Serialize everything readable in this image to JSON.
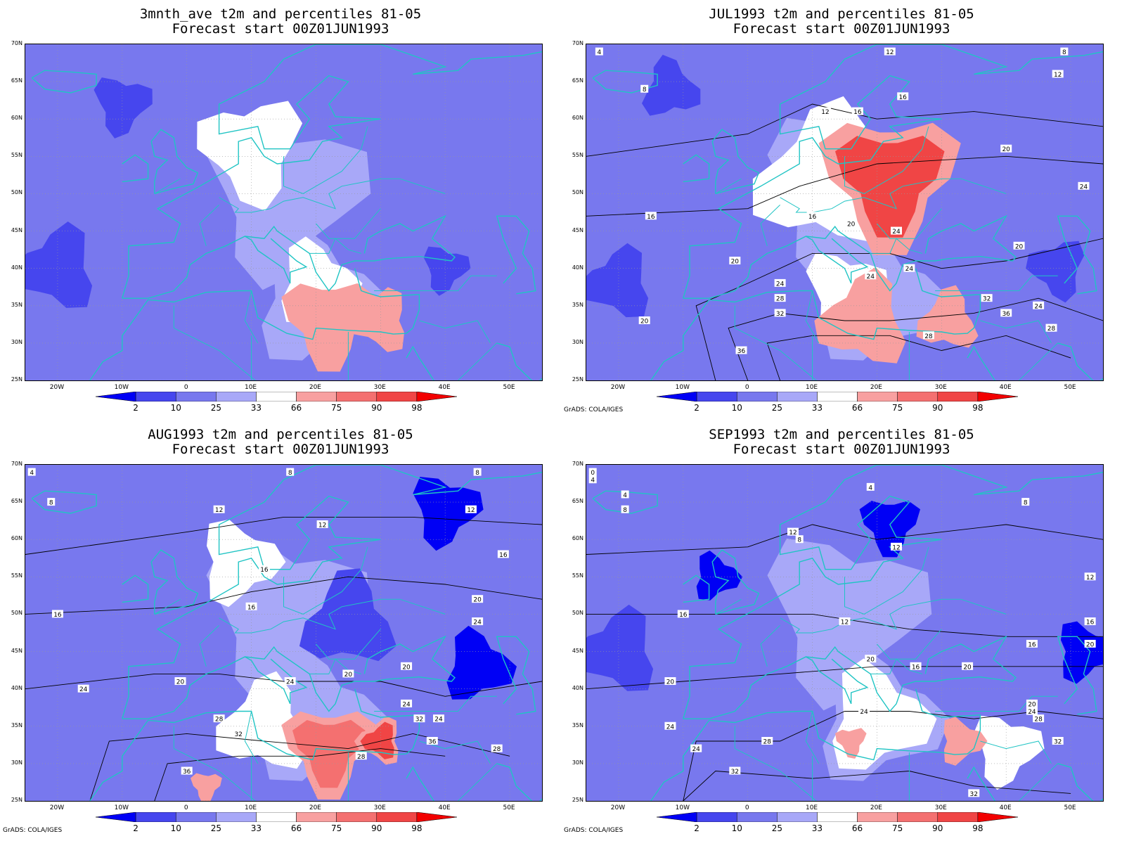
{
  "colors": {
    "c2": "#0000f5",
    "c10": "#4646ee",
    "c25": "#7878ee",
    "c33": "#a8a8f8",
    "mid": "#ffffff",
    "c66": "#f8a0a0",
    "c75": "#f47070",
    "c90": "#f04545",
    "c98": "#f20000",
    "coast": "#20c4c4",
    "contour": "#000000",
    "grid": "#999999"
  },
  "credit": "GrADS: COLA/IGES",
  "lat_labels": [
    "70N",
    "65N",
    "60N",
    "55N",
    "50N",
    "45N",
    "40N",
    "35N",
    "30N",
    "25N"
  ],
  "lon_labels": [
    "20W",
    "10W",
    "0",
    "10E",
    "20E",
    "30E",
    "40E",
    "50E"
  ],
  "colorbar_labels": [
    "2",
    "10",
    "25",
    "33",
    "66",
    "75",
    "90",
    "98"
  ],
  "panels": [
    {
      "title1": "3mnth_ave t2m and percentiles 81-05",
      "title2": "Forecast start 00Z01JUN1993",
      "show_credit": false,
      "contour_labels": [],
      "warm": [
        {
          "lon": 22,
          "lat": 33,
          "c": "c66",
          "r": 6
        },
        {
          "lon": 30,
          "lat": 33,
          "c": "c66",
          "r": 4
        }
      ],
      "cold": [
        {
          "lon": -20,
          "lat": 40,
          "c": "c10",
          "r": 7
        },
        {
          "lon": -10,
          "lat": 62,
          "c": "c10",
          "r": 5
        },
        {
          "lon": 40,
          "lat": 40,
          "c": "c10",
          "r": 4
        }
      ],
      "white": [
        {
          "lon": 10,
          "lat": 56,
          "r": 9
        },
        {
          "lon": 20,
          "lat": 38,
          "r": 7
        }
      ]
    },
    {
      "title1": "JUL1993 t2m and percentiles 81-05",
      "title2": "Forecast start 00Z01JUN1993",
      "show_credit": true,
      "contour_labels": [
        {
          "t": "4",
          "lon": -23,
          "lat": 69
        },
        {
          "t": "8",
          "lon": -16,
          "lat": 64
        },
        {
          "t": "12",
          "lon": 22,
          "lat": 69
        },
        {
          "t": "8",
          "lon": 49,
          "lat": 69
        },
        {
          "t": "12",
          "lon": 48,
          "lat": 66
        },
        {
          "t": "16",
          "lon": 24,
          "lat": 63
        },
        {
          "t": "12",
          "lon": 12,
          "lat": 61
        },
        {
          "t": "16",
          "lon": 17,
          "lat": 61
        },
        {
          "t": "20",
          "lon": 40,
          "lat": 56
        },
        {
          "t": "24",
          "lon": 52,
          "lat": 51
        },
        {
          "t": "16",
          "lon": -15,
          "lat": 47
        },
        {
          "t": "16",
          "lon": 10,
          "lat": 47
        },
        {
          "t": "20",
          "lon": 16,
          "lat": 46
        },
        {
          "t": "24",
          "lon": 23,
          "lat": 45
        },
        {
          "t": "20",
          "lon": 42,
          "lat": 43
        },
        {
          "t": "20",
          "lon": -2,
          "lat": 41
        },
        {
          "t": "24",
          "lon": 5,
          "lat": 38
        },
        {
          "t": "24",
          "lon": 19,
          "lat": 39
        },
        {
          "t": "24",
          "lon": 25,
          "lat": 40
        },
        {
          "t": "28",
          "lon": 5,
          "lat": 36
        },
        {
          "t": "32",
          "lon": 5,
          "lat": 34
        },
        {
          "t": "32",
          "lon": 37,
          "lat": 36
        },
        {
          "t": "24",
          "lon": 45,
          "lat": 35
        },
        {
          "t": "36",
          "lon": 40,
          "lat": 34
        },
        {
          "t": "28",
          "lon": 47,
          "lat": 32
        },
        {
          "t": "20",
          "lon": -16,
          "lat": 33
        },
        {
          "t": "28",
          "lon": 28,
          "lat": 31
        },
        {
          "t": "36",
          "lon": -1,
          "lat": 29
        }
      ],
      "warm": [
        {
          "lon": 22,
          "lat": 52,
          "c": "c90",
          "r": 9
        },
        {
          "lon": 18,
          "lat": 33,
          "c": "c66",
          "r": 6
        },
        {
          "lon": 31,
          "lat": 33,
          "c": "c66",
          "r": 4
        }
      ],
      "cold": [
        {
          "lon": -20,
          "lat": 38,
          "c": "c10",
          "r": 6
        },
        {
          "lon": -12,
          "lat": 64,
          "c": "c10",
          "r": 5
        },
        {
          "lon": 48,
          "lat": 40,
          "c": "c10",
          "r": 5
        }
      ],
      "white": [
        {
          "lon": 12,
          "lat": 52,
          "r": 12
        },
        {
          "lon": 15,
          "lat": 37,
          "r": 7
        }
      ]
    },
    {
      "title1": "AUG1993 t2m and percentiles 81-05",
      "title2": "Forecast start 00Z01JUN1993",
      "show_credit": true,
      "contour_labels": [
        {
          "t": "4",
          "lon": -24,
          "lat": 69
        },
        {
          "t": "8",
          "lon": -21,
          "lat": 65
        },
        {
          "t": "8",
          "lon": 16,
          "lat": 69
        },
        {
          "t": "8",
          "lon": 45,
          "lat": 69
        },
        {
          "t": "12",
          "lon": 5,
          "lat": 64
        },
        {
          "t": "12",
          "lon": 21,
          "lat": 62
        },
        {
          "t": "12",
          "lon": 44,
          "lat": 64
        },
        {
          "t": "16",
          "lon": 12,
          "lat": 56
        },
        {
          "t": "16",
          "lon": 49,
          "lat": 58
        },
        {
          "t": "20",
          "lon": 45,
          "lat": 52
        },
        {
          "t": "16",
          "lon": -20,
          "lat": 50
        },
        {
          "t": "16",
          "lon": 10,
          "lat": 51
        },
        {
          "t": "24",
          "lon": 45,
          "lat": 49
        },
        {
          "t": "20",
          "lon": 25,
          "lat": 42
        },
        {
          "t": "20",
          "lon": 34,
          "lat": 43
        },
        {
          "t": "20",
          "lon": -1,
          "lat": 41
        },
        {
          "t": "24",
          "lon": -16,
          "lat": 40
        },
        {
          "t": "24",
          "lon": 16,
          "lat": 41
        },
        {
          "t": "24",
          "lon": 34,
          "lat": 38
        },
        {
          "t": "32",
          "lon": 36,
          "lat": 36
        },
        {
          "t": "24",
          "lon": 39,
          "lat": 36
        },
        {
          "t": "28",
          "lon": 5,
          "lat": 36
        },
        {
          "t": "32",
          "lon": 8,
          "lat": 34
        },
        {
          "t": "36",
          "lon": 38,
          "lat": 33
        },
        {
          "t": "28",
          "lon": 48,
          "lat": 32
        },
        {
          "t": "28",
          "lon": 27,
          "lat": 31
        },
        {
          "t": "36",
          "lon": 0,
          "lat": 29
        }
      ],
      "warm": [
        {
          "lon": 22,
          "lat": 32,
          "c": "c75",
          "r": 6
        },
        {
          "lon": 30,
          "lat": 33,
          "c": "c90",
          "r": 3
        },
        {
          "lon": 3,
          "lat": 27,
          "c": "c66",
          "r": 2
        }
      ],
      "cold": [
        {
          "lon": 45,
          "lat": 43,
          "c": "c2",
          "r": 6
        },
        {
          "lon": 40,
          "lat": 64,
          "c": "c2",
          "r": 6
        },
        {
          "lon": 25,
          "lat": 49,
          "c": "c10",
          "r": 8
        }
      ],
      "white": [
        {
          "lon": 8,
          "lat": 57,
          "r": 7
        },
        {
          "lon": 12,
          "lat": 35,
          "r": 8
        }
      ]
    },
    {
      "title1": "SEP1993 t2m and percentiles 81-05",
      "title2": "Forecast start 00Z01JUN1993",
      "show_credit": true,
      "contour_labels": [
        {
          "t": "0",
          "lon": -24,
          "lat": 69
        },
        {
          "t": "4",
          "lon": -24,
          "lat": 68
        },
        {
          "t": "4",
          "lon": -19,
          "lat": 66
        },
        {
          "t": "4",
          "lon": 19,
          "lat": 67
        },
        {
          "t": "8",
          "lon": -19,
          "lat": 64
        },
        {
          "t": "8",
          "lon": 43,
          "lat": 65
        },
        {
          "t": "12",
          "lon": 7,
          "lat": 61
        },
        {
          "t": "8",
          "lon": 8,
          "lat": 60
        },
        {
          "t": "12",
          "lon": 23,
          "lat": 59
        },
        {
          "t": "12",
          "lon": 53,
          "lat": 55
        },
        {
          "t": "16",
          "lon": -10,
          "lat": 50
        },
        {
          "t": "12",
          "lon": 15,
          "lat": 49
        },
        {
          "t": "16",
          "lon": 53,
          "lat": 49
        },
        {
          "t": "16",
          "lon": 44,
          "lat": 46
        },
        {
          "t": "20",
          "lon": 53,
          "lat": 46
        },
        {
          "t": "20",
          "lon": 19,
          "lat": 44
        },
        {
          "t": "16",
          "lon": 26,
          "lat": 43
        },
        {
          "t": "20",
          "lon": 34,
          "lat": 43
        },
        {
          "t": "20",
          "lon": -12,
          "lat": 41
        },
        {
          "t": "24",
          "lon": 18,
          "lat": 37
        },
        {
          "t": "20",
          "lon": 44,
          "lat": 38
        },
        {
          "t": "24",
          "lon": 44,
          "lat": 37
        },
        {
          "t": "28",
          "lon": 45,
          "lat": 36
        },
        {
          "t": "32",
          "lon": 48,
          "lat": 33
        },
        {
          "t": "24",
          "lon": -12,
          "lat": 35
        },
        {
          "t": "24",
          "lon": -8,
          "lat": 32
        },
        {
          "t": "28",
          "lon": 3,
          "lat": 33
        },
        {
          "t": "32",
          "lon": -2,
          "lat": 29
        },
        {
          "t": "32",
          "lon": 35,
          "lat": 26
        }
      ],
      "warm": [
        {
          "lon": 16,
          "lat": 33,
          "c": "c66",
          "r": 2
        },
        {
          "lon": 33,
          "lat": 33,
          "c": "c66",
          "r": 3
        }
      ],
      "cold": [
        {
          "lon": 22,
          "lat": 62,
          "c": "c2",
          "r": 5
        },
        {
          "lon": -5,
          "lat": 55,
          "c": "c2",
          "r": 4
        },
        {
          "lon": 52,
          "lat": 45,
          "c": "c2",
          "r": 5
        },
        {
          "lon": -20,
          "lat": 45,
          "c": "c10",
          "r": 7
        }
      ],
      "white": [
        {
          "lon": 20,
          "lat": 36,
          "r": 9
        },
        {
          "lon": 40,
          "lat": 32,
          "r": 6
        }
      ]
    }
  ]
}
